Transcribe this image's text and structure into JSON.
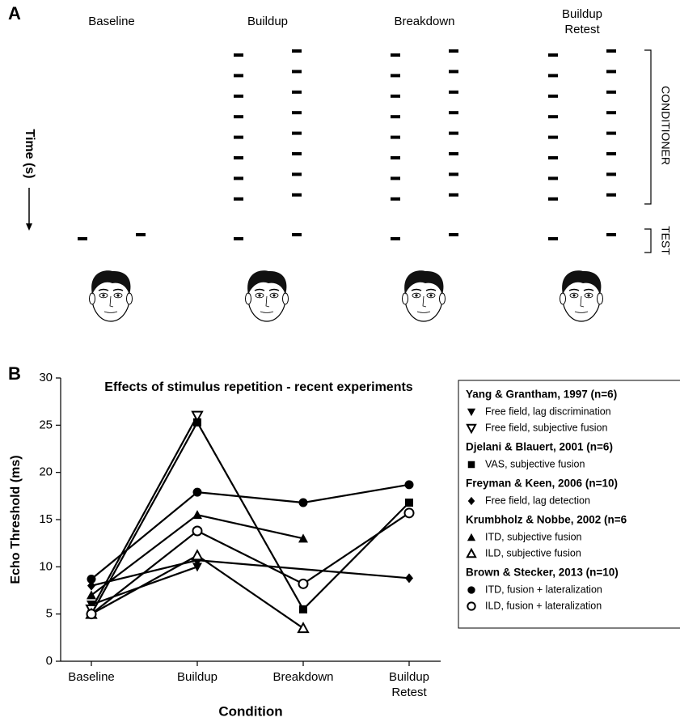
{
  "diagram": {
    "panel_label": "A",
    "columns": [
      "Baseline",
      "Buildup",
      "Breakdown",
      "Buildup Retest"
    ],
    "time_label": "Time (s)",
    "conditioner_label": "CONDITIONER",
    "test_label": "TEST"
  },
  "chart_data": {
    "type": "line",
    "panel_label": "B",
    "title": "Effects of stimulus repetition - recent experiments",
    "x_label": "Condition",
    "y_label": "Echo Threshold (ms)",
    "categories": [
      "Baseline",
      "Buildup",
      "Breakdown",
      "Buildup Retest"
    ],
    "ylim": [
      0,
      30
    ],
    "yticks": [
      0,
      5,
      10,
      15,
      20,
      25,
      30
    ],
    "legend_groups": [
      {
        "title": "Yang & Grantham, 1997 (n=6)",
        "series": [
          {
            "name": "Free field, lag discrimination",
            "color": "#000000",
            "marker": "triangle-down",
            "filled": true,
            "x": [
              "Baseline",
              "Buildup"
            ],
            "values": [
              6,
              10
            ]
          },
          {
            "name": "Free field, subjective fusion",
            "color": "#000000",
            "marker": "triangle-down",
            "filled": false,
            "x": [
              "Baseline",
              "Buildup"
            ],
            "values": [
              5.5,
              26
            ]
          }
        ]
      },
      {
        "title": "Djelani & Blauert, 2001 (n=6)",
        "series": [
          {
            "name": "VAS, subjective fusion",
            "color": "#000000",
            "marker": "square",
            "filled": true,
            "x": [
              "Baseline",
              "Buildup",
              "Breakdown",
              "Buildup Retest"
            ],
            "values": [
              5,
              25.3,
              5.5,
              16.8
            ]
          }
        ]
      },
      {
        "title": "Freyman & Keen, 2006 (n=10)",
        "series": [
          {
            "name": "Free field, lag detection",
            "color": "#000000",
            "marker": "diamond",
            "filled": true,
            "x": [
              "Baseline",
              "Buildup",
              "Buildup Retest"
            ],
            "values": [
              8,
              10.7,
              8.8
            ]
          }
        ]
      },
      {
        "title": "Krumbholz & Nobbe, 2002 (n=6",
        "series": [
          {
            "name": "ITD, subjective fusion",
            "color": "#000000",
            "marker": "triangle-up",
            "filled": true,
            "x": [
              "Baseline",
              "Buildup",
              "Breakdown"
            ],
            "values": [
              7,
              15.5,
              13
            ]
          },
          {
            "name": "ILD, subjective fusion",
            "color": "#000000",
            "marker": "triangle-up",
            "filled": false,
            "x": [
              "Baseline",
              "Buildup",
              "Breakdown"
            ],
            "values": [
              5,
              11.2,
              3.5
            ]
          }
        ]
      },
      {
        "title": "Brown & Stecker, 2013 (n=10)",
        "series": [
          {
            "name": "ITD, fusion + lateralization",
            "color": "#000000",
            "marker": "circle",
            "filled": true,
            "x": [
              "Baseline",
              "Buildup",
              "Breakdown",
              "Buildup Retest"
            ],
            "values": [
              8.7,
              17.9,
              16.8,
              18.7
            ]
          },
          {
            "name": "ILD, fusion + lateralization",
            "color": "#000000",
            "marker": "circle",
            "filled": false,
            "x": [
              "Baseline",
              "Buildup",
              "Breakdown",
              "Buildup Retest"
            ],
            "values": [
              5,
              13.8,
              8.2,
              15.7
            ]
          }
        ]
      }
    ]
  }
}
